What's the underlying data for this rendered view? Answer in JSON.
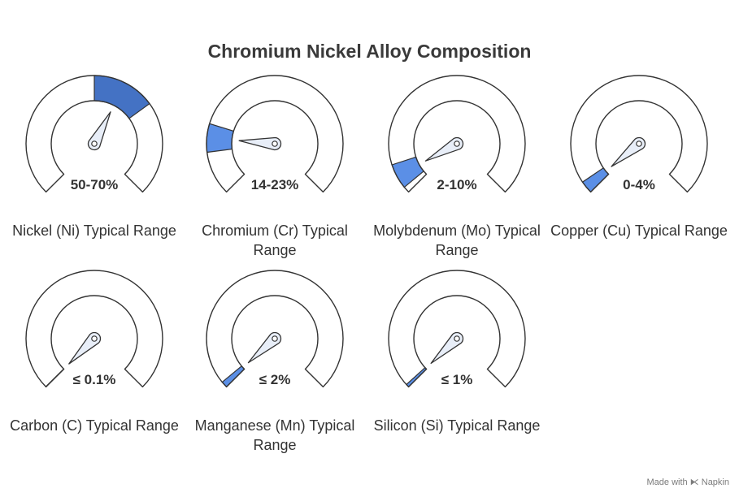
{
  "title": "Chromium Nickel Alloy Composition",
  "watermark": "Made with ⧔ Napkin",
  "colors": {
    "fill_dark": "#4472C4",
    "fill_light": "#5B8FE6",
    "outline": "#333333",
    "needle": "#E8EEF8"
  },
  "chart_data": {
    "type": "gauge",
    "title": "Chromium Nickel Alloy Composition",
    "range": [
      0,
      100
    ],
    "unit": "%",
    "gauges": [
      {
        "label": "Nickel (Ni) Typical Range",
        "value_text": "50-70%",
        "min": 50,
        "max": 70
      },
      {
        "label": "Chromium (Cr) Typical Range",
        "value_text": "14-23%",
        "min": 14,
        "max": 23
      },
      {
        "label": "Molybdenum (Mo) Typical Range",
        "value_text": "2-10%",
        "min": 2,
        "max": 10
      },
      {
        "label": "Copper (Cu) Typical Range",
        "value_text": "0-4%",
        "min": 0,
        "max": 4
      },
      {
        "label": "Carbon (C) Typical Range",
        "value_text": "≤ 0.1%",
        "min": 0,
        "max": 0.1
      },
      {
        "label": "Manganese (Mn) Typical Range",
        "value_text": "≤ 2%",
        "min": 0,
        "max": 2
      },
      {
        "label": "Silicon (Si) Typical Range",
        "value_text": "≤ 1%",
        "min": 0,
        "max": 1
      }
    ]
  }
}
